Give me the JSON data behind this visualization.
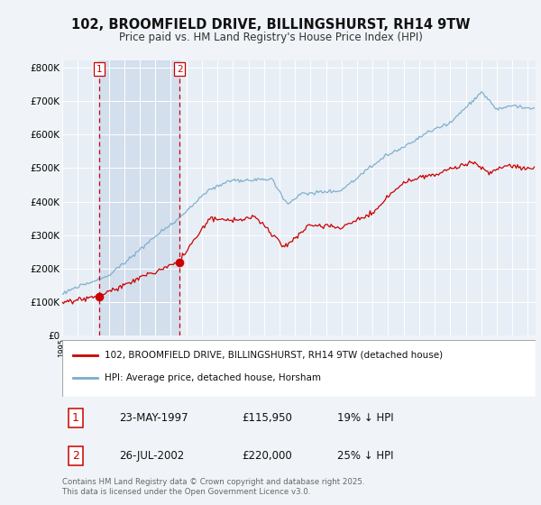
{
  "title": "102, BROOMFIELD DRIVE, BILLINGSHURST, RH14 9TW",
  "subtitle": "Price paid vs. HM Land Registry's House Price Index (HPI)",
  "ylim": [
    0,
    820000
  ],
  "yticks": [
    0,
    100000,
    200000,
    300000,
    400000,
    500000,
    600000,
    700000,
    800000
  ],
  "ytick_labels": [
    "£0",
    "£100K",
    "£200K",
    "£300K",
    "£400K",
    "£500K",
    "£600K",
    "£700K",
    "£800K"
  ],
  "legend_entries": [
    "102, BROOMFIELD DRIVE, BILLINGSHURST, RH14 9TW (detached house)",
    "HPI: Average price, detached house, Horsham"
  ],
  "legend_colors": [
    "#cc0000",
    "#7aaccc"
  ],
  "sale1_date": 1997.38,
  "sale1_price": 115950,
  "sale2_date": 2002.56,
  "sale2_price": 220000,
  "annotation_rows": [
    {
      "num": "1",
      "date": "23-MAY-1997",
      "price": "£115,950",
      "note": "19% ↓ HPI"
    },
    {
      "num": "2",
      "date": "26-JUL-2002",
      "price": "£220,000",
      "note": "25% ↓ HPI"
    }
  ],
  "copyright_text": "Contains HM Land Registry data © Crown copyright and database right 2025.\nThis data is licensed under the Open Government Licence v3.0.",
  "bg_color": "#f0f4f8",
  "plot_bg_color": "#e8eef5",
  "shade_color": "#ccd9ea",
  "grid_color": "#ffffff",
  "red_color": "#cc0000",
  "blue_color": "#7aaccc"
}
